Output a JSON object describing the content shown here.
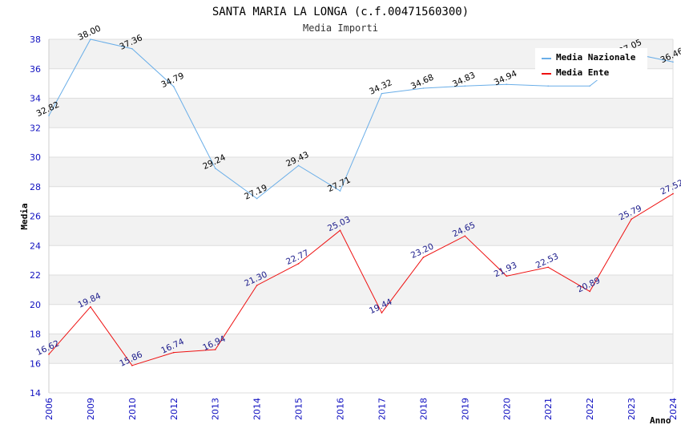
{
  "chart_data": {
    "type": "line",
    "title": "SANTA MARIA LA LONGA (c.f.00471560300)",
    "subtitle": "Media Importi",
    "xlabel": "Anno",
    "ylabel": "Media",
    "ylim": [
      14,
      38
    ],
    "yticks": [
      "14",
      "16",
      "18",
      "20",
      "22",
      "24",
      "26",
      "28",
      "30",
      "32",
      "34",
      "36",
      "38"
    ],
    "categories": [
      "2006",
      "2009",
      "2010",
      "2012",
      "2013",
      "2014",
      "2015",
      "2016",
      "2017",
      "2018",
      "2019",
      "2020",
      "2021",
      "2022",
      "2023",
      "2024"
    ],
    "series": [
      {
        "name": "Media Nazionale",
        "color": "#6aaee8",
        "values": [
          32.82,
          38.0,
          37.36,
          34.79,
          29.24,
          27.19,
          29.43,
          27.71,
          34.32,
          34.68,
          34.83,
          34.94,
          34.83,
          34.83,
          37.05,
          36.46
        ],
        "labels": [
          "32.82",
          "38.00",
          "37.36",
          "34.79",
          "29.24",
          "27.19",
          "29.43",
          "27.71",
          "34.32",
          "34.68",
          "34.83",
          "34.94",
          "",
          "",
          "37.05",
          "36.46"
        ]
      },
      {
        "name": "Media Ente",
        "color": "#ee1111",
        "values": [
          16.62,
          19.84,
          15.86,
          16.74,
          16.94,
          21.3,
          22.77,
          25.03,
          19.44,
          23.2,
          24.65,
          21.93,
          22.53,
          20.89,
          25.79,
          27.52
        ],
        "labels": [
          "16.62",
          "19.84",
          "15.86",
          "16.74",
          "16.94",
          "21.30",
          "22.77",
          "25.03",
          "19.44",
          "23.20",
          "24.65",
          "21.93",
          "22.53",
          "20.89",
          "25.79",
          "27.52"
        ]
      }
    ],
    "legend": "top-right",
    "grid": true
  }
}
